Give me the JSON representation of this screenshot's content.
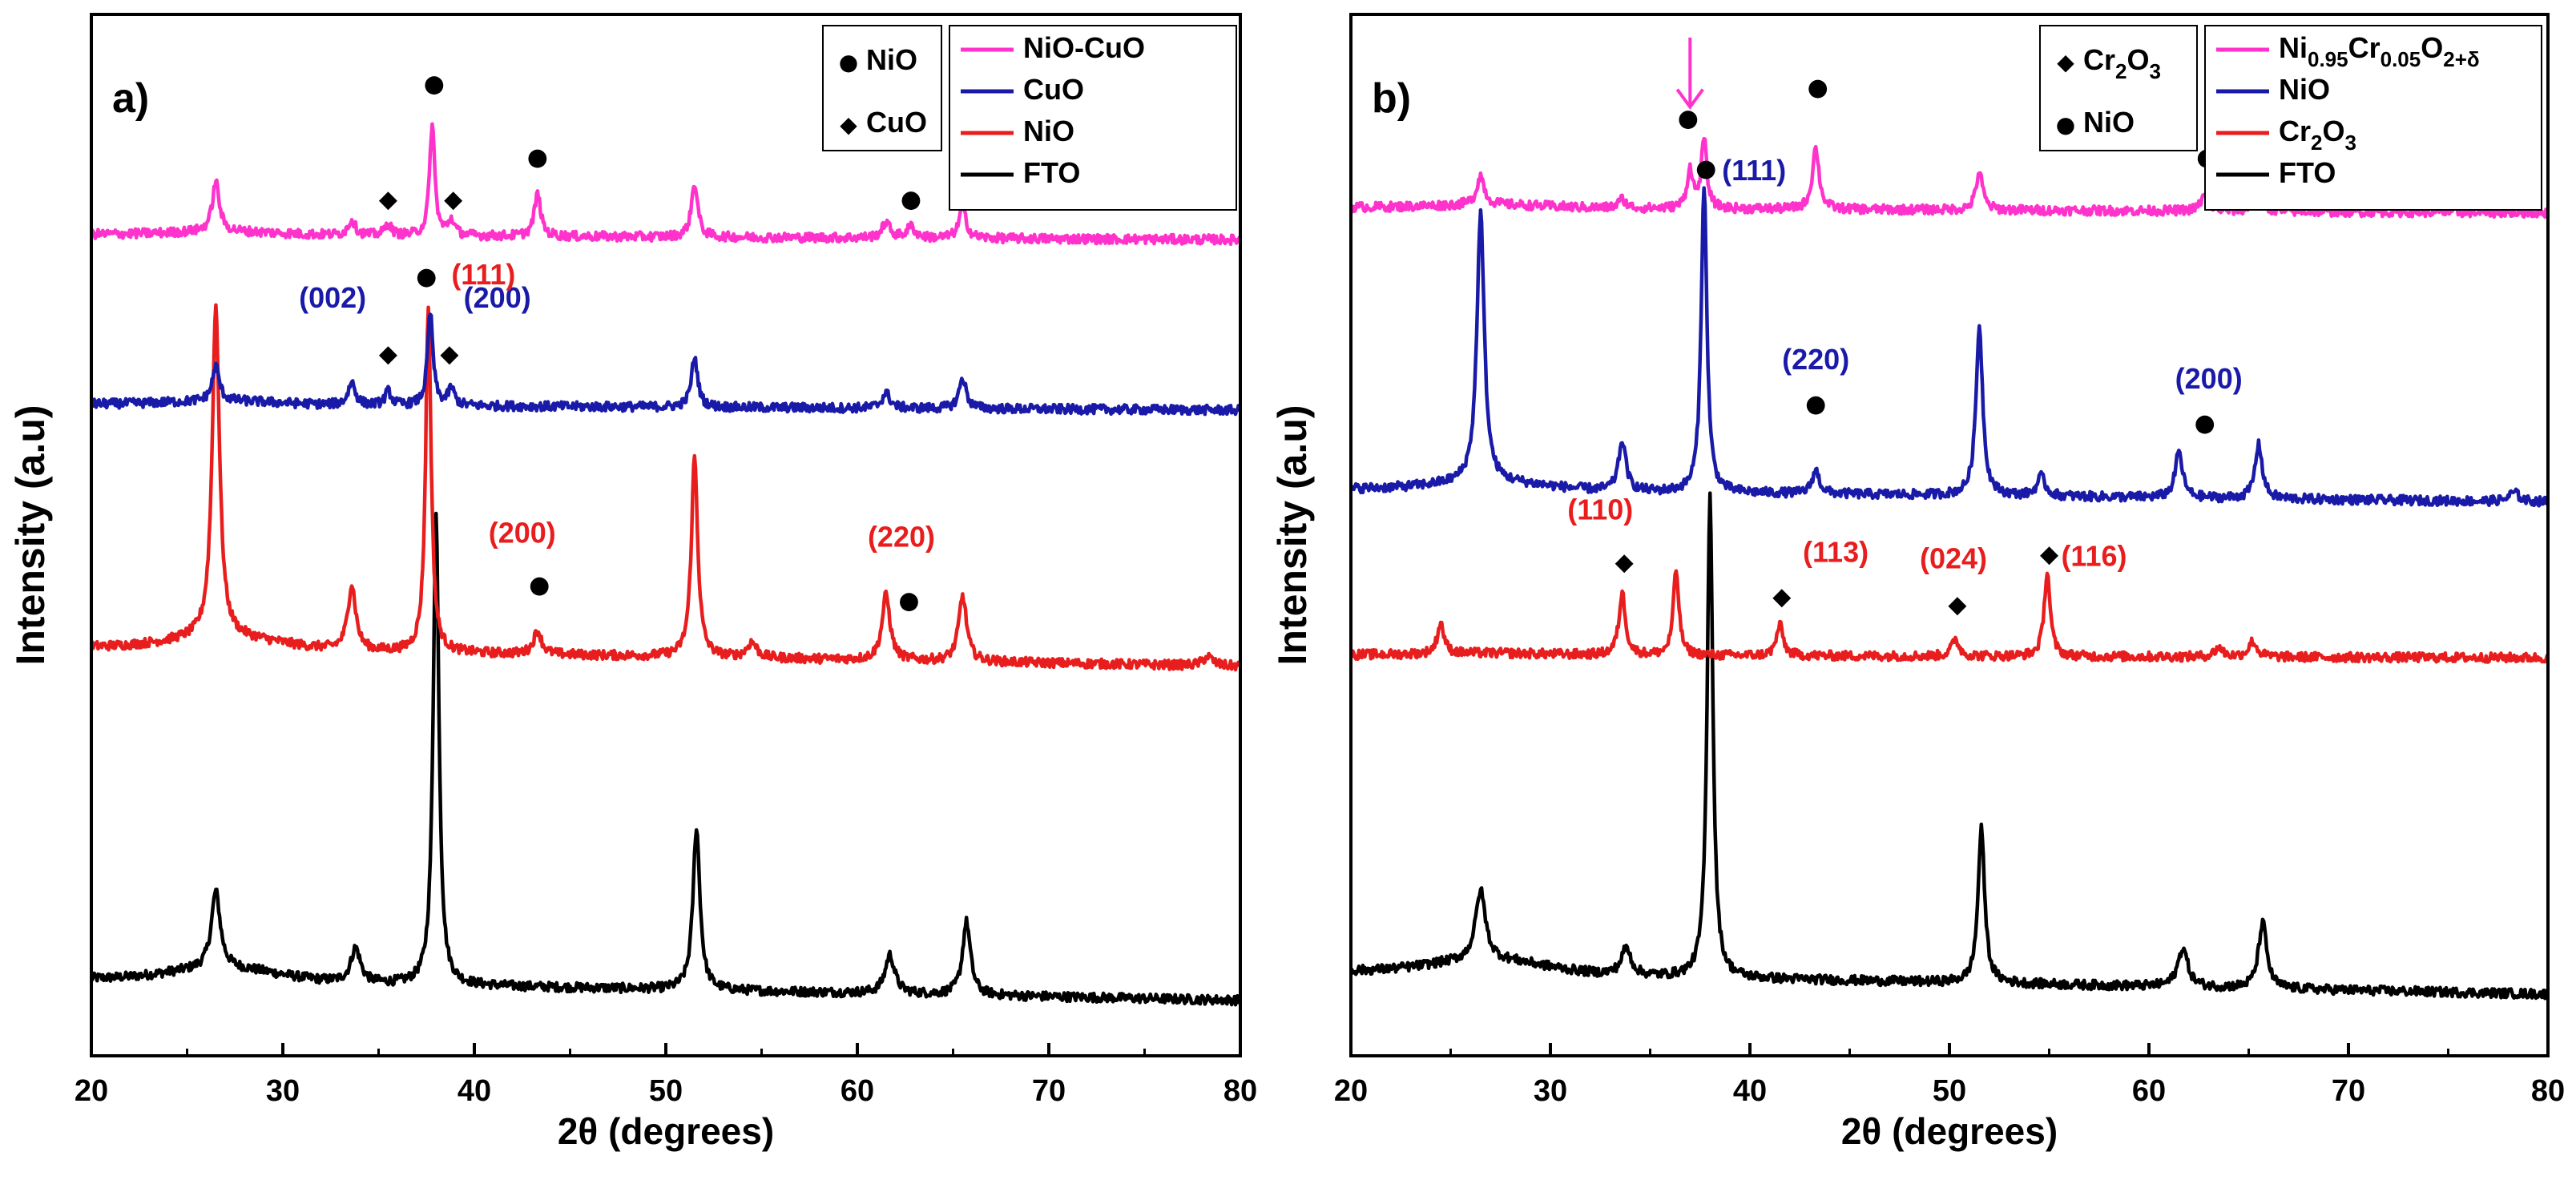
{
  "chart_data": [
    {
      "type": "line",
      "panel_label": "a)",
      "xlabel": "2θ (degrees)",
      "ylabel": "Intensity (a.u)",
      "xlim": [
        20,
        80
      ],
      "xticks": [
        20,
        30,
        40,
        50,
        60,
        70,
        80
      ],
      "yticks": false,
      "grid": false,
      "colors": {
        "NiO-CuO": "#ff33cc",
        "CuO": "#1a1aa8",
        "NiO": "#e81e1e",
        "FTO": "#000000"
      },
      "series": [
        {
          "name": "FTO",
          "baseline": 0.1,
          "slope": 0.028,
          "peaks": [
            [
              26.5,
              0.1,
              0.28
            ],
            [
              33.8,
              0.045,
              0.3
            ],
            [
              38.0,
              0.61,
              0.18
            ],
            [
              51.6,
              0.21,
              0.22
            ],
            [
              61.7,
              0.05,
              0.3
            ],
            [
              65.7,
              0.095,
              0.25
            ]
          ]
        },
        {
          "name": "NiO",
          "baseline": 0.53,
          "slope": 0.025,
          "peaks": [
            [
              26.5,
              0.43,
              0.23
            ],
            [
              33.6,
              0.085,
              0.25
            ],
            [
              37.6,
              0.45,
              0.17
            ],
            [
              43.3,
              0.03,
              0.25
            ],
            [
              51.5,
              0.26,
              0.2
            ],
            [
              54.5,
              0.02,
              0.3
            ],
            [
              61.5,
              0.085,
              0.25
            ],
            [
              65.5,
              0.085,
              0.25
            ],
            [
              78.3,
              0.012,
              0.3
            ]
          ]
        },
        {
          "name": "CuO",
          "baseline": 0.845,
          "slope": 0.008,
          "peaks": [
            [
              26.5,
              0.045,
              0.22
            ],
            [
              33.6,
              0.03,
              0.22
            ],
            [
              35.5,
              0.018,
              0.2
            ],
            [
              37.7,
              0.12,
              0.17
            ],
            [
              38.8,
              0.022,
              0.2
            ],
            [
              51.5,
              0.065,
              0.2
            ],
            [
              61.5,
              0.02,
              0.25
            ],
            [
              65.5,
              0.04,
              0.22
            ]
          ]
        },
        {
          "name": "NiO-CuO",
          "baseline": 1.065,
          "slope": 0.007,
          "peaks": [
            [
              26.5,
              0.065,
              0.22
            ],
            [
              33.6,
              0.02,
              0.22
            ],
            [
              35.5,
              0.015,
              0.2
            ],
            [
              37.8,
              0.145,
              0.16
            ],
            [
              38.8,
              0.02,
              0.2
            ],
            [
              43.3,
              0.055,
              0.2
            ],
            [
              51.5,
              0.07,
              0.2
            ],
            [
              61.5,
              0.02,
              0.25
            ],
            [
              62.8,
              0.015,
              0.25
            ],
            [
              65.5,
              0.04,
              0.22
            ]
          ]
        }
      ],
      "markers": [
        {
          "symbol": "●",
          "x": 37.9,
          "y": 1.25,
          "color": "#000000"
        },
        {
          "symbol": "●",
          "x": 43.3,
          "y": 1.155,
          "color": "#000000"
        },
        {
          "symbol": "●",
          "x": 62.8,
          "y": 1.1,
          "color": "#000000"
        },
        {
          "symbol": "◆",
          "x": 35.5,
          "y": 1.1,
          "color": "#000000"
        },
        {
          "symbol": "◆",
          "x": 38.9,
          "y": 1.1,
          "color": "#000000"
        },
        {
          "symbol": "◆",
          "x": 35.5,
          "y": 0.9,
          "color": "#000000"
        },
        {
          "symbol": "◆",
          "x": 38.7,
          "y": 0.9,
          "color": "#000000"
        },
        {
          "symbol": "●",
          "x": 37.5,
          "y": 1.0,
          "color": "#000000"
        },
        {
          "symbol": "●",
          "x": 43.4,
          "y": 0.6,
          "color": "#000000"
        },
        {
          "symbol": "●",
          "x": 62.7,
          "y": 0.58,
          "color": "#000000"
        }
      ],
      "annotations": [
        {
          "text": "(002)",
          "x": 32.6,
          "y": 0.97,
          "color": "#1a1aa8",
          "anchor": "middle"
        },
        {
          "text": "(200)",
          "x": 41.2,
          "y": 0.97,
          "color": "#1a1aa8",
          "anchor": "middle"
        },
        {
          "text": "(111)",
          "x": 38.8,
          "y": 1.0,
          "color": "#e81e1e",
          "anchor": "start"
        },
        {
          "text": "(200)",
          "x": 42.5,
          "y": 0.665,
          "color": "#e81e1e",
          "anchor": "middle"
        },
        {
          "text": "(220)",
          "x": 62.3,
          "y": 0.66,
          "color": "#e81e1e",
          "anchor": "middle"
        }
      ],
      "phase_legend": [
        {
          "symbol": "●",
          "label": "NiO"
        },
        {
          "symbol": "◆",
          "label": "CuO"
        }
      ],
      "legend": [
        "NiO-CuO",
        "CuO",
        "NiO",
        "FTO"
      ]
    },
    {
      "type": "line",
      "panel_label": "b)",
      "xlabel": "2θ (degrees)",
      "ylabel": "Intensity (a.u)",
      "xlim": [
        20,
        80
      ],
      "xticks": [
        20,
        30,
        40,
        50,
        60,
        70,
        80
      ],
      "yticks": false,
      "grid": false,
      "colors": {
        "Ni0.95Cr0.05O2+δ": "#ff33cc",
        "NiO": "#1a1aa8",
        "Cr2O3": "#e81e1e",
        "FTO": "#000000"
      },
      "series": [
        {
          "name": "FTO",
          "baseline": 0.11,
          "slope": 0.03,
          "peaks": [
            [
              26.5,
              0.09,
              0.3
            ],
            [
              33.8,
              0.035,
              0.3
            ],
            [
              38.0,
              0.63,
              0.17
            ],
            [
              51.6,
              0.2,
              0.2
            ],
            [
              61.7,
              0.05,
              0.3
            ],
            [
              65.7,
              0.085,
              0.25
            ]
          ]
        },
        {
          "name": "Cr2O3",
          "baseline": 0.52,
          "slope": 0.004,
          "peaks": [
            [
              24.5,
              0.04,
              0.2
            ],
            [
              33.6,
              0.08,
              0.2
            ],
            [
              36.3,
              0.11,
              0.17
            ],
            [
              41.5,
              0.04,
              0.2
            ],
            [
              50.3,
              0.022,
              0.22
            ],
            [
              54.9,
              0.11,
              0.18
            ],
            [
              63.5,
              0.012,
              0.25
            ],
            [
              65.2,
              0.02,
              0.25
            ]
          ]
        },
        {
          "name": "NiO",
          "baseline": 0.735,
          "slope": 0.017,
          "peaks": [
            [
              26.5,
              0.35,
              0.22
            ],
            [
              33.6,
              0.065,
              0.22
            ],
            [
              37.7,
              0.4,
              0.17
            ],
            [
              43.3,
              0.03,
              0.22
            ],
            [
              51.5,
              0.22,
              0.2
            ],
            [
              54.6,
              0.025,
              0.25
            ],
            [
              61.5,
              0.06,
              0.22
            ],
            [
              65.5,
              0.07,
              0.22
            ],
            [
              78.3,
              0.012,
              0.3
            ]
          ]
        },
        {
          "name": "Ni0.95Cr0.05O2+δ",
          "baseline": 1.1,
          "slope": 0.007,
          "peaks": [
            [
              26.5,
              0.038,
              0.22
            ],
            [
              33.6,
              0.012,
              0.22
            ],
            [
              37.0,
              0.05,
              0.18
            ],
            [
              37.7,
              0.09,
              0.16
            ],
            [
              43.3,
              0.08,
              0.2
            ],
            [
              51.5,
              0.05,
              0.2
            ],
            [
              62.8,
              0.02,
              0.25
            ],
            [
              65.5,
              0.025,
              0.22
            ]
          ]
        }
      ],
      "markers": [
        {
          "symbol": "●",
          "x": 36.9,
          "y": 1.205,
          "color": "#000000"
        },
        {
          "symbol": "●",
          "x": 43.4,
          "y": 1.245,
          "color": "#000000"
        },
        {
          "symbol": "●",
          "x": 62.9,
          "y": 1.155,
          "color": "#000000"
        },
        {
          "symbol": "●",
          "x": 37.8,
          "y": 1.14,
          "color": "#000000"
        },
        {
          "symbol": "●",
          "x": 43.3,
          "y": 0.835,
          "color": "#000000"
        },
        {
          "symbol": "●",
          "x": 62.8,
          "y": 0.81,
          "color": "#000000"
        },
        {
          "symbol": "◆",
          "x": 33.7,
          "y": 0.63,
          "color": "#000000"
        },
        {
          "symbol": "◆",
          "x": 41.6,
          "y": 0.585,
          "color": "#000000"
        },
        {
          "symbol": "◆",
          "x": 50.4,
          "y": 0.575,
          "color": "#000000"
        },
        {
          "symbol": "◆",
          "x": 55.0,
          "y": 0.64,
          "color": "#000000"
        }
      ],
      "annotations": [
        {
          "text": "(111)",
          "x": 38.6,
          "y": 1.135,
          "color": "#1a1aa8",
          "anchor": "start"
        },
        {
          "text": "(220)",
          "x": 43.3,
          "y": 0.89,
          "color": "#1a1aa8",
          "anchor": "middle"
        },
        {
          "text": "(200)",
          "x": 63.0,
          "y": 0.865,
          "color": "#1a1aa8",
          "anchor": "middle"
        },
        {
          "text": "(110)",
          "x": 32.5,
          "y": 0.695,
          "color": "#e81e1e",
          "anchor": "middle"
        },
        {
          "text": "(113)",
          "x": 44.3,
          "y": 0.64,
          "color": "#e81e1e",
          "anchor": "middle"
        },
        {
          "text": "(024)",
          "x": 50.2,
          "y": 0.632,
          "color": "#e81e1e",
          "anchor": "middle"
        },
        {
          "text": "(116)",
          "x": 55.6,
          "y": 0.635,
          "color": "#e81e1e",
          "anchor": "start"
        }
      ],
      "arrow": {
        "x": 37.0,
        "y_top": 1.32,
        "y_bottom": 1.23,
        "color": "#ff33cc"
      },
      "phase_legend": [
        {
          "symbol": "◆",
          "label": "Cr2O3"
        },
        {
          "symbol": "●",
          "label": "NiO"
        }
      ],
      "legend": [
        "Ni0.95Cr0.05O2+δ",
        "NiO",
        "Cr2O3",
        "FTO"
      ]
    }
  ]
}
